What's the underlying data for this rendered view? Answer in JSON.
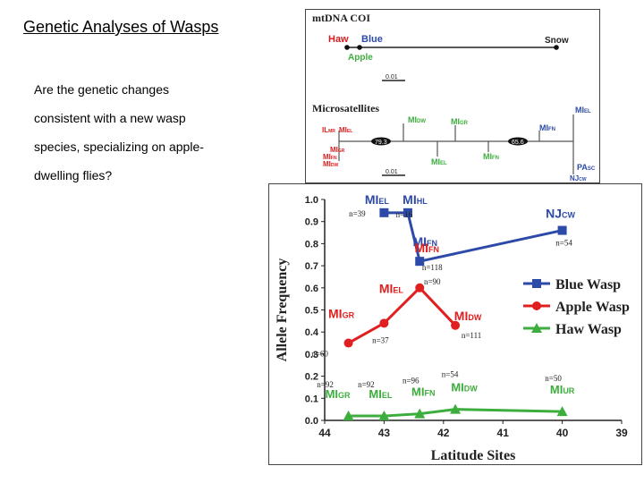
{
  "slide": {
    "title": "Genetic Analyses of Wasps",
    "question_lines": [
      "Are the genetic changes",
      "consistent with a new wasp",
      "species, specializing on apple-",
      "dwelling flies?"
    ]
  },
  "tree": {
    "mtdna": {
      "heading": "mtDNA COI",
      "haw": "Haw",
      "blue": "Blue",
      "apple": "Apple",
      "snow": "Snow",
      "scale": "0.01"
    },
    "micro": {
      "heading": "Microsatellites",
      "leaves": [
        {
          "id": "mi-el-r",
          "main": "MI",
          "sub": "EL"
        },
        {
          "id": "mi-dw",
          "main": "MI",
          "sub": "DW"
        },
        {
          "id": "mi-gr",
          "main": "MI",
          "sub": "GR"
        },
        {
          "id": "mi-fn-r",
          "main": "MI",
          "sub": "FN"
        },
        {
          "id": "il-mr",
          "main": "IL",
          "sub": "MR"
        },
        {
          "id": "mi-el",
          "main": "MI",
          "sub": "EL"
        },
        {
          "id": "mi-gr-l",
          "main": "MI",
          "sub": "GR"
        },
        {
          "id": "mi-fn",
          "main": "MI",
          "sub": "FN"
        },
        {
          "id": "mi-dw-l",
          "main": "MI",
          "sub": "DW"
        },
        {
          "id": "mi-el-m",
          "main": "MI",
          "sub": "EL"
        },
        {
          "id": "mi-fn-m",
          "main": "MI",
          "sub": "FN"
        },
        {
          "id": "pa-sc",
          "main": "PA",
          "sub": "SC"
        },
        {
          "id": "nj-cw",
          "main": "NJ",
          "sub": "CW"
        }
      ],
      "bootstrap_a": "79.3",
      "bootstrap_b": "65.6",
      "scale": "0.01"
    }
  },
  "chart_data": {
    "type": "line",
    "xlabel": "Latitude Sites",
    "ylabel": "Allele Frequency",
    "xlim": [
      44,
      39
    ],
    "ylim": [
      0,
      1.0
    ],
    "x_ticks": [
      44,
      43,
      42,
      41,
      40,
      39
    ],
    "y_ticks": [
      0.0,
      0.1,
      0.2,
      0.3,
      0.4,
      0.5,
      0.6,
      0.7,
      0.8,
      0.9,
      1.0
    ],
    "legend_position": "right",
    "series": [
      {
        "name": "Blue Wasp",
        "color": "#2e4aa8",
        "marker": "square",
        "points": [
          {
            "x": 43.0,
            "y": 0.94,
            "site": "MI",
            "sub": "EL",
            "n": "n=39"
          },
          {
            "x": 42.6,
            "y": 0.94,
            "site": "MI",
            "sub": "HL",
            "n": "n=16"
          },
          {
            "x": 42.4,
            "y": 0.72,
            "site": "MI",
            "sub": "FN",
            "n": "n=118"
          },
          {
            "x": 40.0,
            "y": 0.86,
            "site": "NJ",
            "sub": "CW",
            "n": "n=54"
          }
        ]
      },
      {
        "name": "Apple Wasp",
        "color": "#e02020",
        "marker": "circle",
        "points": [
          {
            "x": 43.6,
            "y": 0.35,
            "site": "MI",
            "sub": "GR",
            "n": "n=60"
          },
          {
            "x": 43.0,
            "y": 0.44,
            "site": "MI",
            "sub": "EL",
            "n": "n=37"
          },
          {
            "x": 42.4,
            "y": 0.6,
            "site": "MI",
            "sub": "FN",
            "n": "n=90"
          },
          {
            "x": 41.8,
            "y": 0.43,
            "site": "MI",
            "sub": "DW",
            "n": "n=111"
          }
        ]
      },
      {
        "name": "Haw Wasp",
        "color": "#3dae3d",
        "marker": "triangle",
        "points": [
          {
            "x": 43.6,
            "y": 0.02,
            "site": "MI",
            "sub": "GR",
            "n": "n=92"
          },
          {
            "x": 43.0,
            "y": 0.02,
            "site": "MI",
            "sub": "EL",
            "n": "n=92"
          },
          {
            "x": 42.4,
            "y": 0.03,
            "site": "MI",
            "sub": "FN",
            "n": "n=96"
          },
          {
            "x": 41.8,
            "y": 0.05,
            "site": "MI",
            "sub": "DW",
            "n": "n=54"
          },
          {
            "x": 40.0,
            "y": 0.04,
            "site": "MI",
            "sub": "UR",
            "n": "n=50"
          }
        ]
      }
    ]
  }
}
